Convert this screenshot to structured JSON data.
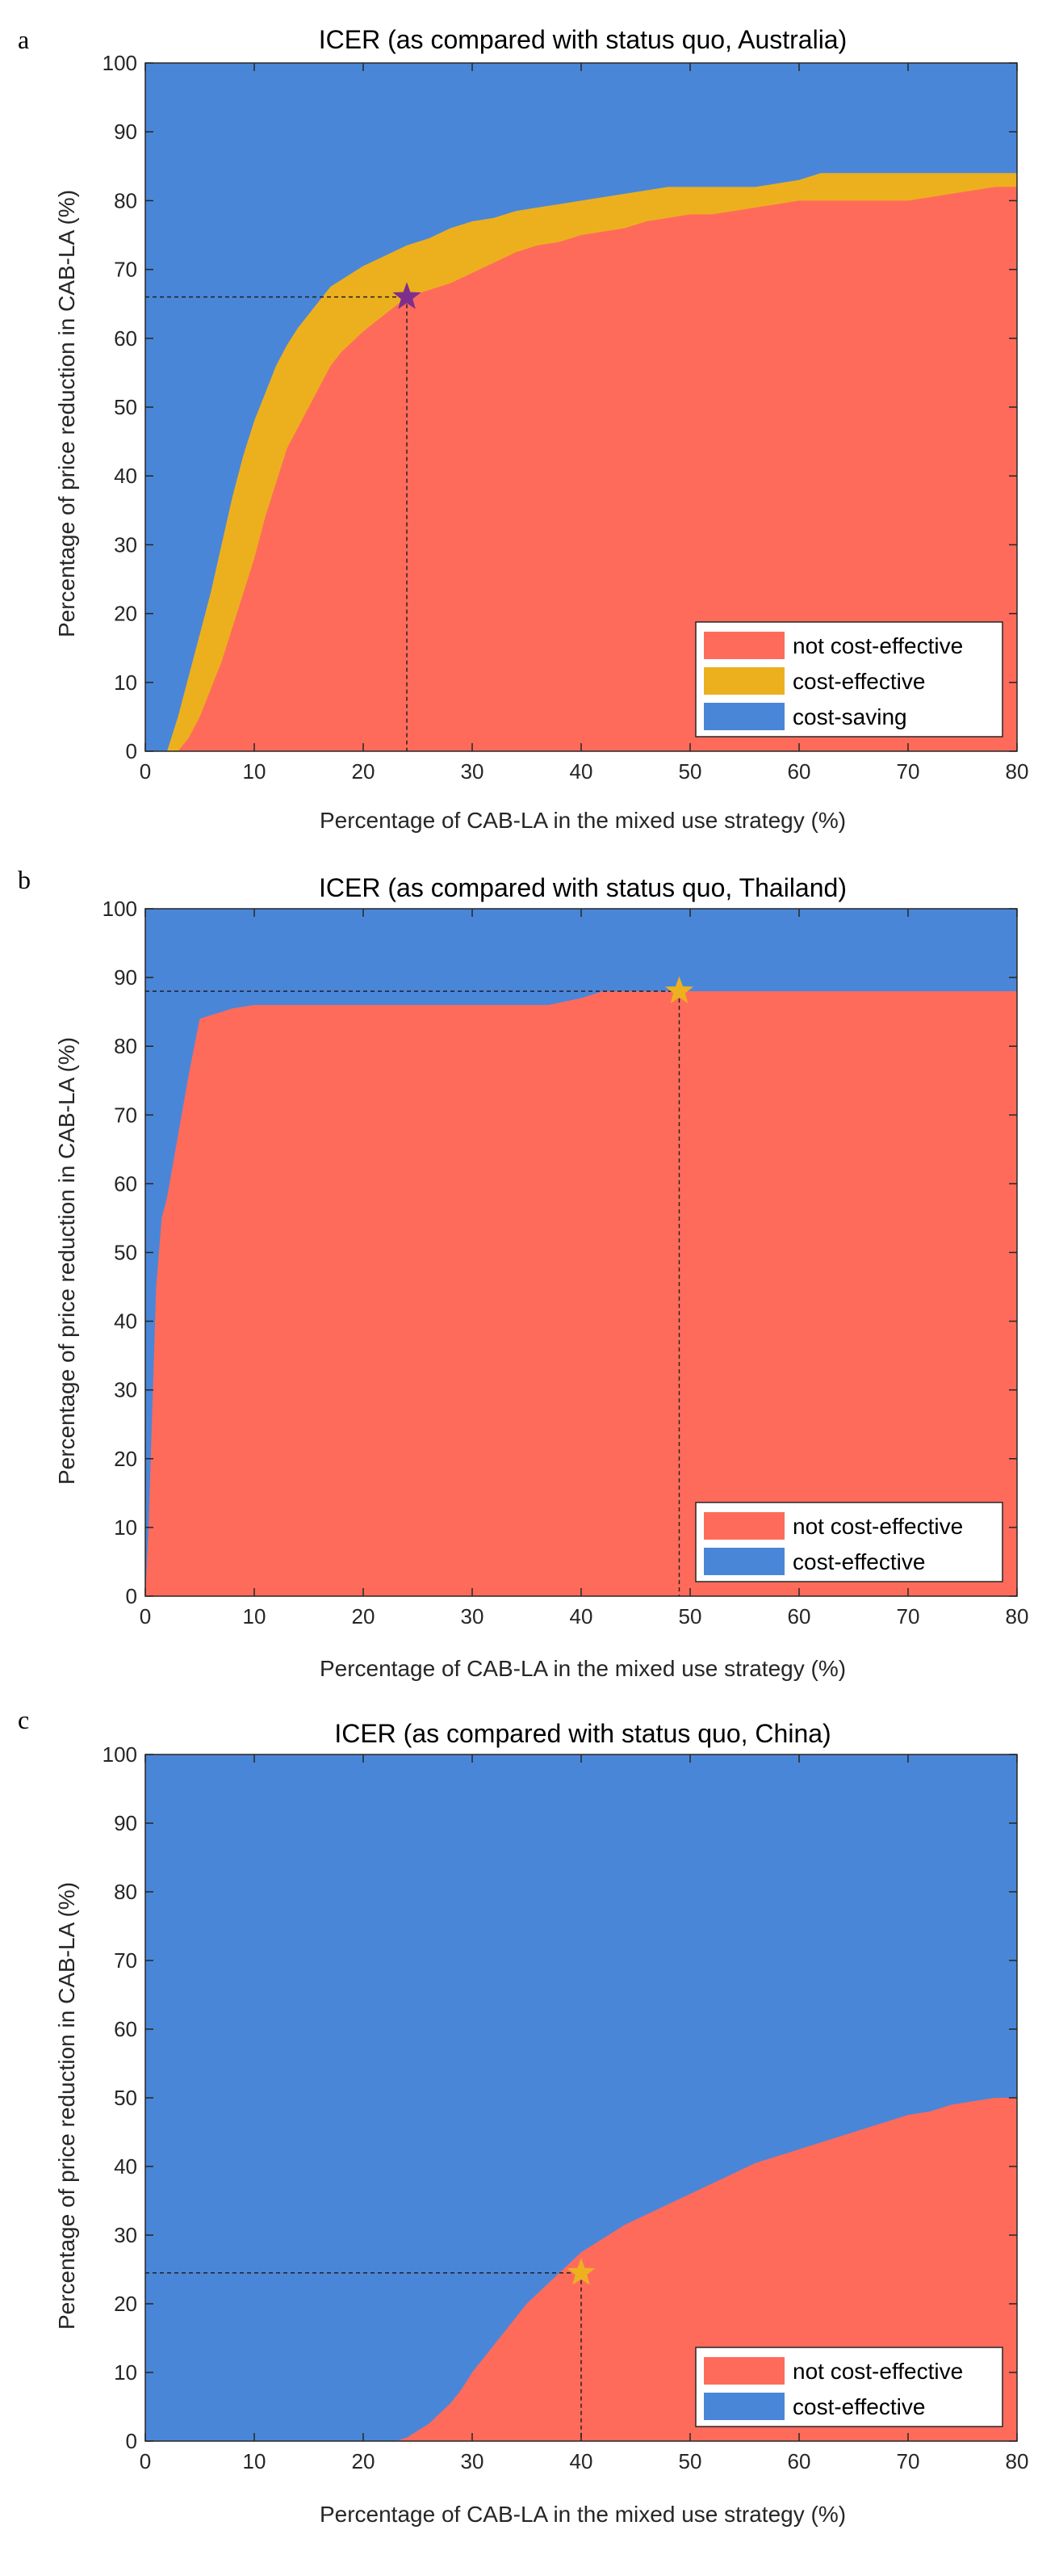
{
  "colors": {
    "not_cost_effective": "#FF6B5B",
    "cost_effective_orange": "#ECB01F",
    "blue": "#4A86D8",
    "star_purple": "#7E2F8E",
    "star_yellow": "#EDB120"
  },
  "chart_data": [
    {
      "panel": "a",
      "type": "area",
      "title": "ICER (as compared with status quo, Australia)",
      "xlabel": "Percentage of CAB-LA in the mixed use strategy (%)",
      "ylabel": "Percentage of price reduction in CAB-LA (%)",
      "xlim": [
        0,
        80
      ],
      "ylim": [
        0,
        100
      ],
      "xticks": [
        0,
        10,
        20,
        30,
        40,
        50,
        60,
        70,
        80
      ],
      "yticks": [
        0,
        10,
        20,
        30,
        40,
        50,
        60,
        70,
        80,
        90,
        100
      ],
      "legend": {
        "position": "bottom-right",
        "entries": [
          "not cost-effective",
          "cost-effective",
          "cost-saving"
        ]
      },
      "series": [
        {
          "name": "not cost-effective",
          "color": "#FF6B5B",
          "x": [
            0,
            3,
            4,
            5,
            6,
            7,
            8,
            9,
            10,
            11,
            12,
            13,
            14,
            15,
            16,
            17,
            18,
            20,
            22,
            24,
            26,
            28,
            30,
            32,
            34,
            36,
            38,
            40,
            42,
            44,
            46,
            48,
            50,
            52,
            54,
            56,
            58,
            60,
            62,
            64,
            66,
            68,
            70,
            72,
            74,
            76,
            78,
            80
          ],
          "values": [
            0,
            0,
            2,
            5,
            9,
            13,
            18,
            23,
            28,
            34,
            39,
            44,
            47,
            50,
            53,
            56,
            58,
            61,
            63.5,
            66,
            67,
            68,
            69.5,
            71,
            72.5,
            73.5,
            74,
            75,
            75.5,
            76,
            77,
            77.5,
            78,
            78,
            78.5,
            79,
            79.5,
            80,
            80,
            80,
            80,
            80,
            80,
            80.5,
            81,
            81.5,
            82,
            82
          ]
        },
        {
          "name": "cost-effective",
          "color": "#ECB01F",
          "x": [
            0,
            2,
            3,
            4,
            5,
            6,
            7,
            8,
            9,
            10,
            11,
            12,
            13,
            14,
            15,
            16,
            17,
            18,
            20,
            22,
            24,
            26,
            28,
            30,
            32,
            34,
            36,
            38,
            40,
            42,
            44,
            46,
            48,
            50,
            52,
            54,
            56,
            58,
            60,
            62,
            64,
            66,
            68,
            70,
            72,
            74,
            76,
            78,
            80
          ],
          "values": [
            0,
            0,
            5,
            11,
            17,
            23,
            30,
            37,
            43,
            48,
            52,
            56,
            59,
            61.5,
            63.5,
            65.5,
            67.5,
            68.5,
            70.5,
            72,
            73.5,
            74.5,
            76,
            77,
            77.5,
            78.5,
            79,
            79.5,
            80,
            80.5,
            81,
            81.5,
            82,
            82,
            82,
            82,
            82,
            82.5,
            83,
            84,
            84,
            84,
            84,
            84,
            84,
            84,
            84,
            84,
            84
          ]
        },
        {
          "name": "cost-saving",
          "color": "#4A86D8",
          "note": "fills remaining area up to 100"
        }
      ],
      "marker": {
        "x": 24,
        "y": 66,
        "color": "#7E2F8E"
      }
    },
    {
      "panel": "b",
      "type": "area",
      "title": "ICER (as compared with status quo, Thailand)",
      "xlabel": "Percentage of CAB-LA in the mixed use strategy (%)",
      "ylabel": "Percentage of price reduction in CAB-LA (%)",
      "xlim": [
        0,
        80
      ],
      "ylim": [
        0,
        100
      ],
      "xticks": [
        0,
        10,
        20,
        30,
        40,
        50,
        60,
        70,
        80
      ],
      "yticks": [
        0,
        10,
        20,
        30,
        40,
        50,
        60,
        70,
        80,
        90,
        100
      ],
      "legend": {
        "position": "bottom-right",
        "entries": [
          "not cost-effective",
          "cost-effective"
        ]
      },
      "series": [
        {
          "name": "not cost-effective",
          "color": "#FF6B5B",
          "x": [
            0,
            0.3,
            0.6,
            1,
            1.5,
            2,
            3,
            4,
            5,
            6,
            7,
            8,
            10,
            15,
            20,
            25,
            30,
            35,
            37,
            40,
            42,
            45,
            50,
            60,
            70,
            80
          ],
          "values": [
            0,
            10,
            25,
            45,
            55,
            58,
            67,
            76,
            84,
            84.5,
            85,
            85.5,
            86,
            86,
            86,
            86,
            86,
            86,
            86,
            87,
            88,
            88,
            88,
            88,
            88,
            88
          ]
        },
        {
          "name": "cost-effective",
          "color": "#4A86D8",
          "note": "fills remaining area up to 100"
        }
      ],
      "marker": {
        "x": 49,
        "y": 88,
        "color": "#EDB120"
      }
    },
    {
      "panel": "c",
      "type": "area",
      "title": "ICER (as compared with status quo, China)",
      "xlabel": "Percentage of CAB-LA in the mixed use strategy (%)",
      "ylabel": "Percentage of price reduction in CAB-LA (%)",
      "xlim": [
        0,
        80
      ],
      "ylim": [
        0,
        100
      ],
      "xticks": [
        0,
        10,
        20,
        30,
        40,
        50,
        60,
        70,
        80
      ],
      "yticks": [
        0,
        10,
        20,
        30,
        40,
        50,
        60,
        70,
        80,
        90,
        100
      ],
      "legend": {
        "position": "bottom-right",
        "entries": [
          "not cost-effective",
          "cost-effective"
        ]
      },
      "series": [
        {
          "name": "not cost-effective",
          "color": "#FF6B5B",
          "x": [
            0,
            23,
            24,
            25,
            26,
            27,
            28,
            29,
            30,
            31,
            32,
            33,
            34,
            35,
            36,
            37,
            38,
            39,
            40,
            42,
            44,
            46,
            48,
            50,
            52,
            54,
            56,
            58,
            60,
            62,
            64,
            66,
            68,
            70,
            72,
            74,
            76,
            78,
            80
          ],
          "values": [
            0,
            0,
            0.5,
            1.5,
            2.5,
            4,
            5.5,
            7.5,
            10,
            12,
            14,
            16,
            18,
            20,
            21.5,
            23,
            24.5,
            26,
            27.5,
            29.5,
            31.5,
            33,
            34.5,
            36,
            37.5,
            39,
            40.5,
            41.5,
            42.5,
            43.5,
            44.5,
            45.5,
            46.5,
            47.5,
            48,
            49,
            49.5,
            50,
            50
          ]
        },
        {
          "name": "cost-effective",
          "color": "#4A86D8",
          "note": "fills remaining area up to 100"
        }
      ],
      "marker": {
        "x": 40,
        "y": 24.5,
        "color": "#EDB120"
      }
    }
  ]
}
